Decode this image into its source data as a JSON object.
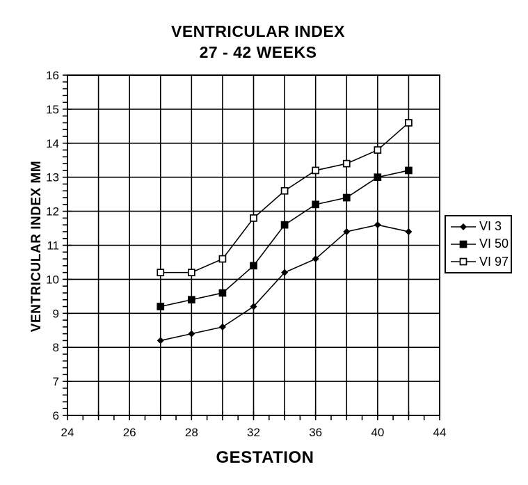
{
  "title": {
    "line1": "VENTRICULAR INDEX",
    "line2": "27 - 42 WEEKS"
  },
  "chart_data": {
    "type": "line",
    "title": "VENTRICULAR INDEX 27 - 42 WEEKS",
    "xlabel": "GESTATION",
    "ylabel": "VENTRICULAR INDEX MM",
    "x_categories": [
      24,
      25,
      26,
      27,
      28,
      30,
      32,
      34,
      36,
      38,
      40,
      42,
      44
    ],
    "x_tick_labels": [
      "24",
      "26",
      "28",
      "32",
      "36",
      "40",
      "44"
    ],
    "x_tick_positions": [
      0,
      2,
      4,
      6,
      8,
      10,
      12
    ],
    "y_min": 6,
    "y_max": 16,
    "y_major_step": 1,
    "y_minor_step": 0.2,
    "grid": true,
    "legend_position": "right",
    "x": [
      27,
      28,
      30,
      32,
      34,
      36,
      38,
      40,
      42
    ],
    "series": [
      {
        "name": "VI 3",
        "marker": "diamond-filled",
        "values": [
          8.2,
          8.4,
          8.6,
          9.2,
          10.2,
          10.6,
          11.4,
          11.6,
          11.4
        ]
      },
      {
        "name": "VI 50",
        "marker": "square-filled",
        "values": [
          9.2,
          9.4,
          9.6,
          10.4,
          11.6,
          12.2,
          12.4,
          13.0,
          13.2
        ]
      },
      {
        "name": "VI 97",
        "marker": "square-open",
        "values": [
          10.2,
          10.2,
          10.6,
          11.8,
          12.6,
          13.2,
          13.4,
          13.8,
          14.6
        ]
      }
    ],
    "colors": {
      "line": "#000000",
      "grid": "#000000",
      "background": "#ffffff"
    }
  }
}
